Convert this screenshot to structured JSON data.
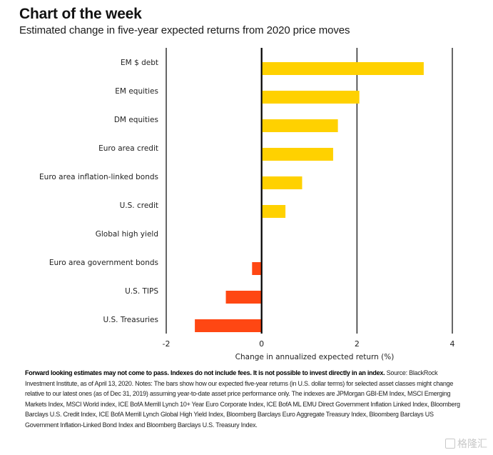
{
  "header": {
    "title": "Chart of the week",
    "subtitle": "Estimated change in five-year expected returns from 2020 price moves"
  },
  "chart_data": {
    "type": "bar",
    "orientation": "horizontal",
    "title": "Chart of the week",
    "subtitle": "Estimated change in five-year expected returns from 2020 price moves",
    "xlabel": "Change in annualized expected return (%)",
    "ylabel": "",
    "xlim": [
      -2,
      4
    ],
    "xticks": [
      -2,
      0,
      2,
      4
    ],
    "xtick_labels": [
      "-2",
      "0",
      "2",
      "4"
    ],
    "grid": "vertical at ticks",
    "categories": [
      "EM $ debt",
      "EM equities",
      "DM equities",
      "Euro area credit",
      "Euro area inflation-linked bonds",
      "U.S. credit",
      "Global high yield",
      "Euro area government bonds",
      "U.S. TIPS",
      "U.S. Treasuries"
    ],
    "values": [
      3.4,
      2.05,
      1.6,
      1.5,
      0.85,
      0.5,
      0.0,
      -0.2,
      -0.75,
      -1.4
    ],
    "colors": {
      "positive": "#FFD100",
      "negative": "#FF4713"
    }
  },
  "footnote": {
    "bold": "Forward looking estimates may not come to pass. Indexes do not include fees. It is not possible to invest directly in an index.",
    "text": " Source: BlackRock Investment Institute, as of April 13, 2020. Notes: The bars show how our expected five-year returns (in U.S. dollar terms) for selected asset classes might change relative to our latest ones (as of Dec 31, 2019) assuming year-to-date asset price performance only. The indexes are JPMorgan GBI-EM Index, MSCI Emerging Markets Index, MSCI World index, ICE BofA Merrill Lynch 10+ Year Euro Corporate Index, ICE BofA ML EMU Direct Government Inflation Linked Index, Bloomberg Barclays U.S. Credit Index, ICE BofA Merrill Lynch Global High Yield Index, Bloomberg Barclays Euro Aggregate Treasury Index, Bloomberg Barclays US Government Inflation-Linked Bond Index and Bloomberg Barclays U.S. Treasury Index."
  },
  "watermark": {
    "text": "格隆汇",
    "icon": "gelonghui-logo-icon"
  }
}
